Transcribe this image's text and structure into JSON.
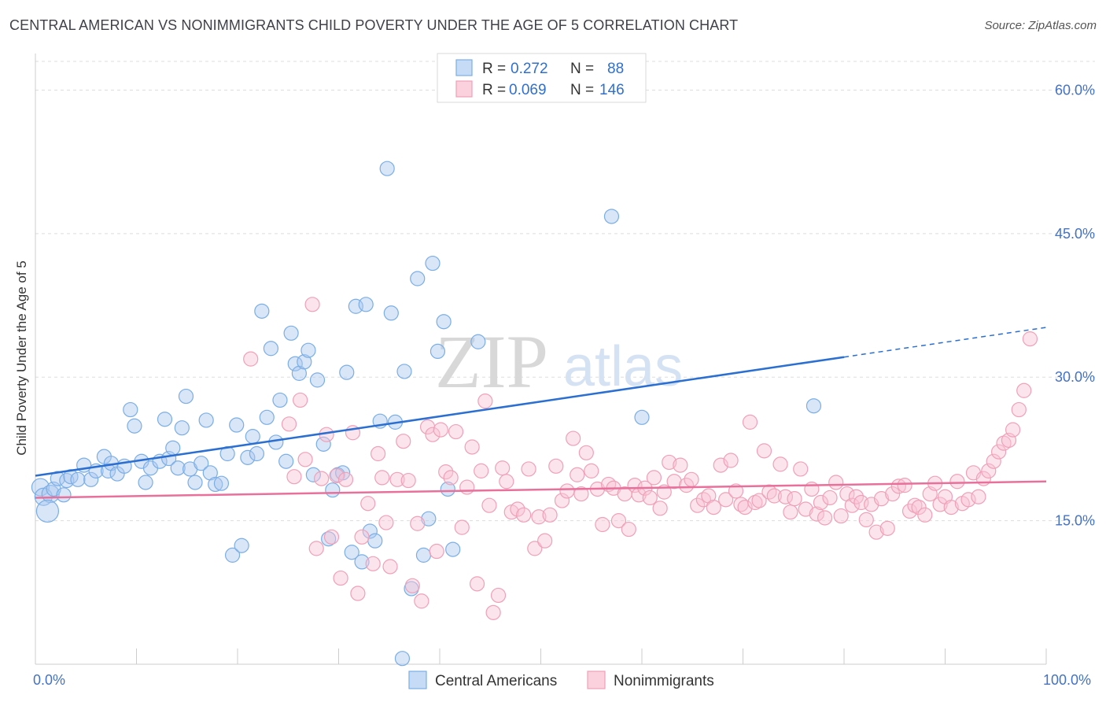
{
  "title": "CENTRAL AMERICAN VS NONIMMIGRANTS CHILD POVERTY UNDER THE AGE OF 5 CORRELATION CHART",
  "source": "Source: ZipAtlas.com",
  "watermark": {
    "zip": "ZIP",
    "atlas": "atlas"
  },
  "legend": {
    "r_label": "R =",
    "n_label": "N =",
    "entries": [
      {
        "series": "Central Americans",
        "r": "0.272",
        "n": "88"
      },
      {
        "series": "Nonimmigrants",
        "r": "0.069",
        "n": "146"
      }
    ]
  },
  "chart_data": {
    "type": "scatter",
    "title": "CENTRAL AMERICAN VS NONIMMIGRANTS CHILD POVERTY UNDER THE AGE OF 5 CORRELATION CHART",
    "xlabel": "",
    "ylabel": "Child Poverty Under the Age of 5",
    "xlim": [
      0,
      100
    ],
    "ylim": [
      0,
      63
    ],
    "x_tick_labels": {
      "0": "0.0%",
      "100": "100.0%"
    },
    "y_ticks": [
      15,
      30,
      45,
      60
    ],
    "y_tick_labels": [
      "15.0%",
      "30.0%",
      "45.0%",
      "60.0%"
    ],
    "grid": "dashed horizontal",
    "legend_position": "top-center",
    "colors": {
      "Central Americans": "#7aaee6",
      "Nonimmigrants": "#f0a0b8",
      "blue_line": "#2a6fd1",
      "pink_line": "#e8709a"
    },
    "series": [
      {
        "name": "Central Americans",
        "trend": {
          "x0": 0,
          "y0": 19.7,
          "x1": 80,
          "y1": 32.1,
          "dash_to_x": 100,
          "dash_to_y": 35.2
        },
        "points": [
          [
            0.5,
            18.5
          ],
          [
            0.8,
            17.5
          ],
          [
            1.5,
            17.8
          ],
          [
            1.8,
            18.3
          ],
          [
            2.2,
            19.4
          ],
          [
            2.8,
            17.7
          ],
          [
            3.1,
            19.2
          ],
          [
            3.5,
            19.6
          ],
          [
            4.2,
            19.3
          ],
          [
            4.8,
            20.8
          ],
          [
            5.5,
            19.3
          ],
          [
            6.0,
            20.2
          ],
          [
            6.8,
            21.7
          ],
          [
            7.2,
            20.2
          ],
          [
            7.5,
            21.0
          ],
          [
            8.1,
            19.9
          ],
          [
            8.8,
            20.7
          ],
          [
            9.4,
            26.6
          ],
          [
            9.8,
            24.9
          ],
          [
            10.5,
            21.2
          ],
          [
            10.9,
            19.0
          ],
          [
            11.4,
            20.5
          ],
          [
            12.3,
            21.2
          ],
          [
            12.8,
            25.6
          ],
          [
            13.2,
            21.5
          ],
          [
            13.6,
            22.6
          ],
          [
            14.1,
            20.5
          ],
          [
            14.5,
            24.7
          ],
          [
            14.9,
            28.0
          ],
          [
            15.3,
            20.4
          ],
          [
            15.8,
            19.0
          ],
          [
            16.4,
            21.0
          ],
          [
            16.9,
            25.5
          ],
          [
            17.3,
            20.0
          ],
          [
            17.8,
            18.8
          ],
          [
            18.4,
            18.9
          ],
          [
            19.0,
            22.0
          ],
          [
            19.5,
            11.4
          ],
          [
            19.9,
            25.0
          ],
          [
            20.4,
            12.4
          ],
          [
            21.0,
            21.6
          ],
          [
            21.5,
            23.8
          ],
          [
            21.9,
            22.0
          ],
          [
            22.4,
            36.9
          ],
          [
            22.9,
            25.8
          ],
          [
            23.3,
            33.0
          ],
          [
            23.8,
            23.2
          ],
          [
            24.2,
            27.6
          ],
          [
            24.8,
            21.2
          ],
          [
            25.3,
            34.6
          ],
          [
            25.7,
            31.4
          ],
          [
            26.1,
            30.4
          ],
          [
            26.6,
            31.6
          ],
          [
            27.0,
            32.8
          ],
          [
            27.5,
            19.8
          ],
          [
            27.9,
            29.7
          ],
          [
            28.5,
            23.0
          ],
          [
            29.0,
            13.1
          ],
          [
            29.4,
            18.2
          ],
          [
            29.9,
            19.8
          ],
          [
            30.4,
            20.0
          ],
          [
            30.8,
            30.5
          ],
          [
            31.3,
            11.7
          ],
          [
            31.7,
            37.4
          ],
          [
            32.3,
            10.7
          ],
          [
            32.7,
            37.6
          ],
          [
            33.1,
            13.9
          ],
          [
            33.6,
            12.9
          ],
          [
            34.1,
            25.4
          ],
          [
            34.8,
            51.8
          ],
          [
            35.2,
            36.7
          ],
          [
            35.6,
            25.3
          ],
          [
            36.5,
            30.6
          ],
          [
            37.2,
            7.9
          ],
          [
            37.8,
            40.3
          ],
          [
            38.4,
            11.4
          ],
          [
            38.9,
            15.2
          ],
          [
            39.3,
            41.9
          ],
          [
            39.8,
            32.7
          ],
          [
            40.4,
            35.8
          ],
          [
            40.8,
            18.3
          ],
          [
            41.3,
            12.0
          ],
          [
            43.8,
            33.7
          ],
          [
            36.3,
            0.6
          ],
          [
            57.0,
            46.8
          ],
          [
            60.0,
            25.8
          ],
          [
            77.0,
            27.0
          ],
          [
            1.2,
            16.0
          ]
        ]
      },
      {
        "name": "Nonimmigrants",
        "trend": {
          "x0": 0,
          "y0": 17.4,
          "x1": 100,
          "y1": 19.1
        },
        "points": [
          [
            21.3,
            31.9
          ],
          [
            25.1,
            25.1
          ],
          [
            25.6,
            19.6
          ],
          [
            26.2,
            27.6
          ],
          [
            26.7,
            21.4
          ],
          [
            27.4,
            37.6
          ],
          [
            27.8,
            12.1
          ],
          [
            28.3,
            19.4
          ],
          [
            28.8,
            24.0
          ],
          [
            29.3,
            13.3
          ],
          [
            29.8,
            19.7
          ],
          [
            30.2,
            9.0
          ],
          [
            30.7,
            19.3
          ],
          [
            31.4,
            24.2
          ],
          [
            31.9,
            7.4
          ],
          [
            32.3,
            13.3
          ],
          [
            32.9,
            16.8
          ],
          [
            33.4,
            10.5
          ],
          [
            33.9,
            22.0
          ],
          [
            34.3,
            19.5
          ],
          [
            34.7,
            14.8
          ],
          [
            35.1,
            10.2
          ],
          [
            35.8,
            19.3
          ],
          [
            36.4,
            23.3
          ],
          [
            36.9,
            19.2
          ],
          [
            37.3,
            8.2
          ],
          [
            37.8,
            14.7
          ],
          [
            38.2,
            6.6
          ],
          [
            38.8,
            24.8
          ],
          [
            39.3,
            24.0
          ],
          [
            39.7,
            11.8
          ],
          [
            40.1,
            24.5
          ],
          [
            40.6,
            20.1
          ],
          [
            41.1,
            19.5
          ],
          [
            41.6,
            24.3
          ],
          [
            42.2,
            14.3
          ],
          [
            42.7,
            18.5
          ],
          [
            43.2,
            22.7
          ],
          [
            43.7,
            8.4
          ],
          [
            44.1,
            20.2
          ],
          [
            44.5,
            27.5
          ],
          [
            44.9,
            16.6
          ],
          [
            45.3,
            5.4
          ],
          [
            45.8,
            7.2
          ],
          [
            46.2,
            20.5
          ],
          [
            46.6,
            19.1
          ],
          [
            47.1,
            15.9
          ],
          [
            47.7,
            16.2
          ],
          [
            48.3,
            15.6
          ],
          [
            48.8,
            20.4
          ],
          [
            49.4,
            12.1
          ],
          [
            49.8,
            15.4
          ],
          [
            50.4,
            12.9
          ],
          [
            50.9,
            15.6
          ],
          [
            51.5,
            20.7
          ],
          [
            52.1,
            17.1
          ],
          [
            52.6,
            18.1
          ],
          [
            53.2,
            23.6
          ],
          [
            53.6,
            19.8
          ],
          [
            54.0,
            17.8
          ],
          [
            54.5,
            22.1
          ],
          [
            55.0,
            20.2
          ],
          [
            55.6,
            18.3
          ],
          [
            56.1,
            14.6
          ],
          [
            56.7,
            18.8
          ],
          [
            57.2,
            18.4
          ],
          [
            57.7,
            15.0
          ],
          [
            58.3,
            17.8
          ],
          [
            58.7,
            14.1
          ],
          [
            59.3,
            18.7
          ],
          [
            59.7,
            17.7
          ],
          [
            60.3,
            18.4
          ],
          [
            60.8,
            17.4
          ],
          [
            61.2,
            19.5
          ],
          [
            61.8,
            16.3
          ],
          [
            62.2,
            18.0
          ],
          [
            62.7,
            21.1
          ],
          [
            63.2,
            19.1
          ],
          [
            63.8,
            20.8
          ],
          [
            64.4,
            18.7
          ],
          [
            64.9,
            19.3
          ],
          [
            65.5,
            16.6
          ],
          [
            66.1,
            17.2
          ],
          [
            66.6,
            17.6
          ],
          [
            67.1,
            16.4
          ],
          [
            67.8,
            20.8
          ],
          [
            68.3,
            17.2
          ],
          [
            68.8,
            21.3
          ],
          [
            69.3,
            18.1
          ],
          [
            69.8,
            16.7
          ],
          [
            70.2,
            16.4
          ],
          [
            70.7,
            25.3
          ],
          [
            71.2,
            16.9
          ],
          [
            71.6,
            17.1
          ],
          [
            72.1,
            22.3
          ],
          [
            72.6,
            18.0
          ],
          [
            73.1,
            17.6
          ],
          [
            73.7,
            20.9
          ],
          [
            74.2,
            17.5
          ],
          [
            74.7,
            15.9
          ],
          [
            75.1,
            17.3
          ],
          [
            75.7,
            20.4
          ],
          [
            76.2,
            16.2
          ],
          [
            76.8,
            18.3
          ],
          [
            77.3,
            15.7
          ],
          [
            77.7,
            16.9
          ],
          [
            78.1,
            15.3
          ],
          [
            78.6,
            17.4
          ],
          [
            79.2,
            19.0
          ],
          [
            79.7,
            15.5
          ],
          [
            80.3,
            17.8
          ],
          [
            80.8,
            16.6
          ],
          [
            81.2,
            17.5
          ],
          [
            81.7,
            16.9
          ],
          [
            82.2,
            15.1
          ],
          [
            82.7,
            16.7
          ],
          [
            83.2,
            13.8
          ],
          [
            83.7,
            17.3
          ],
          [
            84.3,
            14.2
          ],
          [
            84.8,
            17.8
          ],
          [
            85.4,
            18.6
          ],
          [
            86.0,
            18.7
          ],
          [
            86.5,
            16.0
          ],
          [
            87.0,
            16.6
          ],
          [
            87.4,
            16.4
          ],
          [
            88.0,
            15.6
          ],
          [
            88.5,
            17.8
          ],
          [
            89.0,
            18.9
          ],
          [
            89.5,
            16.7
          ],
          [
            90.0,
            17.5
          ],
          [
            90.6,
            16.4
          ],
          [
            91.2,
            19.1
          ],
          [
            91.7,
            16.8
          ],
          [
            92.3,
            17.2
          ],
          [
            92.8,
            20.0
          ],
          [
            93.3,
            17.5
          ],
          [
            93.8,
            19.4
          ],
          [
            94.3,
            20.2
          ],
          [
            94.8,
            21.2
          ],
          [
            95.3,
            22.2
          ],
          [
            95.8,
            23.1
          ],
          [
            96.3,
            23.4
          ],
          [
            96.7,
            24.5
          ],
          [
            97.3,
            26.6
          ],
          [
            97.8,
            28.6
          ],
          [
            98.4,
            34.0
          ]
        ]
      }
    ]
  }
}
